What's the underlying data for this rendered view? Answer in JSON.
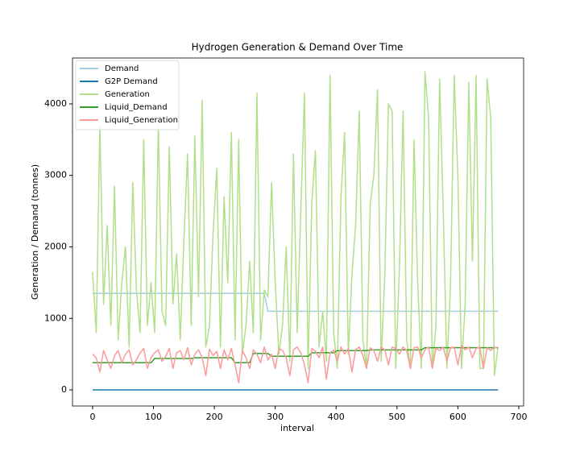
{
  "chart_data": {
    "type": "line",
    "title": "Hydrogen Generation & Demand Over Time",
    "xlabel": "interval",
    "ylabel": "Generation / Demand (tonnes)",
    "xlim": [
      -33,
      708
    ],
    "ylim": [
      -225,
      4642
    ],
    "xticks": [
      0,
      100,
      200,
      300,
      400,
      500,
      600,
      700
    ],
    "yticks": [
      0,
      1000,
      2000,
      3000,
      4000
    ],
    "legend": "upper left",
    "x": [
      0,
      6,
      12,
      18,
      24,
      30,
      36,
      42,
      48,
      54,
      60,
      66,
      72,
      78,
      84,
      90,
      96,
      102,
      108,
      114,
      120,
      126,
      132,
      138,
      144,
      150,
      156,
      162,
      168,
      174,
      180,
      186,
      192,
      198,
      204,
      210,
      216,
      222,
      228,
      234,
      240,
      246,
      252,
      258,
      264,
      270,
      276,
      282,
      288,
      294,
      300,
      306,
      312,
      318,
      324,
      330,
      336,
      342,
      348,
      354,
      360,
      366,
      372,
      378,
      384,
      390,
      396,
      402,
      408,
      414,
      420,
      426,
      432,
      438,
      444,
      450,
      456,
      462,
      468,
      474,
      480,
      486,
      492,
      498,
      504,
      510,
      516,
      522,
      528,
      534,
      540,
      546,
      552,
      558,
      564,
      570,
      576,
      582,
      588,
      594,
      600,
      606,
      612,
      618,
      624,
      630,
      636,
      642,
      648,
      654,
      660,
      666
    ],
    "series": [
      {
        "name": "Demand",
        "color": "#a6cee3",
        "values": [
          1350,
          1350,
          1350,
          1350,
          1350,
          1350,
          1350,
          1350,
          1350,
          1350,
          1350,
          1350,
          1350,
          1350,
          1350,
          1350,
          1350,
          1350,
          1350,
          1350,
          1350,
          1350,
          1350,
          1350,
          1350,
          1350,
          1350,
          1350,
          1350,
          1350,
          1350,
          1350,
          1350,
          1350,
          1350,
          1350,
          1350,
          1350,
          1350,
          1350,
          1350,
          1350,
          1350,
          1350,
          1350,
          1350,
          1350,
          1350,
          1100,
          1100,
          1100,
          1100,
          1100,
          1100,
          1100,
          1100,
          1100,
          1100,
          1100,
          1100,
          1100,
          1100,
          1100,
          1100,
          1100,
          1100,
          1100,
          1100,
          1100,
          1100,
          1100,
          1100,
          1100,
          1100,
          1100,
          1100,
          1100,
          1100,
          1100,
          1100,
          1100,
          1100,
          1100,
          1100,
          1100,
          1100,
          1100,
          1100,
          1100,
          1100,
          1100,
          1100,
          1100,
          1100,
          1100,
          1100,
          1100,
          1100,
          1100,
          1100,
          1100,
          1100,
          1100,
          1100,
          1100,
          1100,
          1100,
          1100,
          1100,
          1100,
          1100,
          1100
        ]
      },
      {
        "name": "G2P Demand",
        "color": "#1f78b4",
        "values": [
          0,
          0,
          0,
          0,
          0,
          0,
          0,
          0,
          0,
          0,
          0,
          0,
          0,
          0,
          0,
          0,
          0,
          0,
          0,
          0,
          0,
          0,
          0,
          0,
          0,
          0,
          0,
          0,
          0,
          0,
          0,
          0,
          0,
          0,
          0,
          0,
          0,
          0,
          0,
          0,
          0,
          0,
          0,
          0,
          0,
          0,
          0,
          0,
          0,
          0,
          0,
          0,
          0,
          0,
          0,
          0,
          0,
          0,
          0,
          0,
          0,
          0,
          0,
          0,
          0,
          0,
          0,
          0,
          0,
          0,
          0,
          0,
          0,
          0,
          0,
          0,
          0,
          0,
          0,
          0,
          0,
          0,
          0,
          0,
          0,
          0,
          0,
          0,
          0,
          0,
          0,
          0,
          0,
          0,
          0,
          0,
          0,
          0,
          0,
          0,
          0,
          0,
          0,
          0,
          0,
          0,
          0,
          0,
          0,
          0,
          0,
          0
        ]
      },
      {
        "name": "Generation",
        "color": "#b2df8a",
        "values": [
          1650,
          800,
          3700,
          1200,
          2300,
          900,
          2850,
          700,
          1500,
          2000,
          600,
          2900,
          1400,
          800,
          3500,
          900,
          1500,
          800,
          3700,
          1100,
          900,
          3400,
          1200,
          1900,
          700,
          2100,
          3300,
          900,
          3550,
          1300,
          4050,
          600,
          900,
          2200,
          3100,
          600,
          2700,
          1500,
          3600,
          700,
          3500,
          500,
          900,
          1800,
          800,
          4150,
          700,
          1400,
          1300,
          2900,
          1500,
          500,
          900,
          2000,
          400,
          3300,
          800,
          2500,
          4150,
          300,
          2600,
          3350,
          600,
          1100,
          400,
          4400,
          800,
          300,
          2700,
          3600,
          500,
          1600,
          2300,
          3900,
          700,
          300,
          2600,
          3000,
          4200,
          400,
          1600,
          4000,
          3900,
          300,
          1700,
          3900,
          700,
          300,
          3500,
          1500,
          300,
          4450,
          3800,
          300,
          900,
          4350,
          2500,
          300,
          1500,
          4400,
          3000,
          300,
          1200,
          4300,
          1800,
          4400,
          300,
          300,
          4350,
          3800,
          200,
          600
        ]
      },
      {
        "name": "Liquid_Demand",
        "color": "#33a02c",
        "values": [
          380,
          380,
          380,
          380,
          380,
          380,
          380,
          380,
          380,
          380,
          380,
          380,
          380,
          380,
          380,
          380,
          380,
          440,
          440,
          440,
          440,
          440,
          440,
          440,
          440,
          440,
          440,
          440,
          450,
          450,
          450,
          450,
          450,
          450,
          450,
          450,
          450,
          450,
          450,
          380,
          380,
          380,
          380,
          380,
          510,
          510,
          510,
          510,
          510,
          470,
          470,
          470,
          470,
          470,
          470,
          470,
          470,
          470,
          470,
          470,
          520,
          520,
          520,
          520,
          520,
          520,
          520,
          550,
          550,
          550,
          550,
          550,
          550,
          550,
          550,
          550,
          560,
          560,
          560,
          560,
          560,
          560,
          560,
          560,
          560,
          560,
          560,
          560,
          560,
          560,
          560,
          590,
          590,
          590,
          590,
          590,
          590,
          590,
          590,
          590,
          590,
          590,
          590,
          590,
          590,
          590,
          590,
          590,
          590,
          590,
          590,
          590
        ]
      },
      {
        "name": "Liquid_Generation",
        "color": "#fb9a99",
        "values": [
          500,
          450,
          250,
          550,
          420,
          300,
          480,
          550,
          380,
          500,
          560,
          350,
          420,
          520,
          580,
          300,
          450,
          520,
          560,
          400,
          470,
          580,
          300,
          520,
          550,
          420,
          590,
          350,
          500,
          560,
          450,
          200,
          570,
          480,
          540,
          300,
          560,
          420,
          580,
          350,
          100,
          550,
          450,
          300,
          560,
          500,
          380,
          600,
          420,
          500,
          300,
          580,
          550,
          450,
          200,
          560,
          600,
          520,
          350,
          100,
          580,
          540,
          450,
          600,
          150,
          520,
          560,
          400,
          600,
          500,
          580,
          250,
          560,
          600,
          480,
          300,
          590,
          550,
          400,
          600,
          560,
          350,
          600,
          580,
          500,
          600,
          550,
          300,
          590,
          600,
          450,
          560,
          600,
          300,
          580,
          550,
          600,
          400,
          590,
          600,
          350,
          620,
          560,
          600,
          450,
          580,
          600,
          300,
          590,
          550,
          600,
          580
        ]
      }
    ]
  }
}
